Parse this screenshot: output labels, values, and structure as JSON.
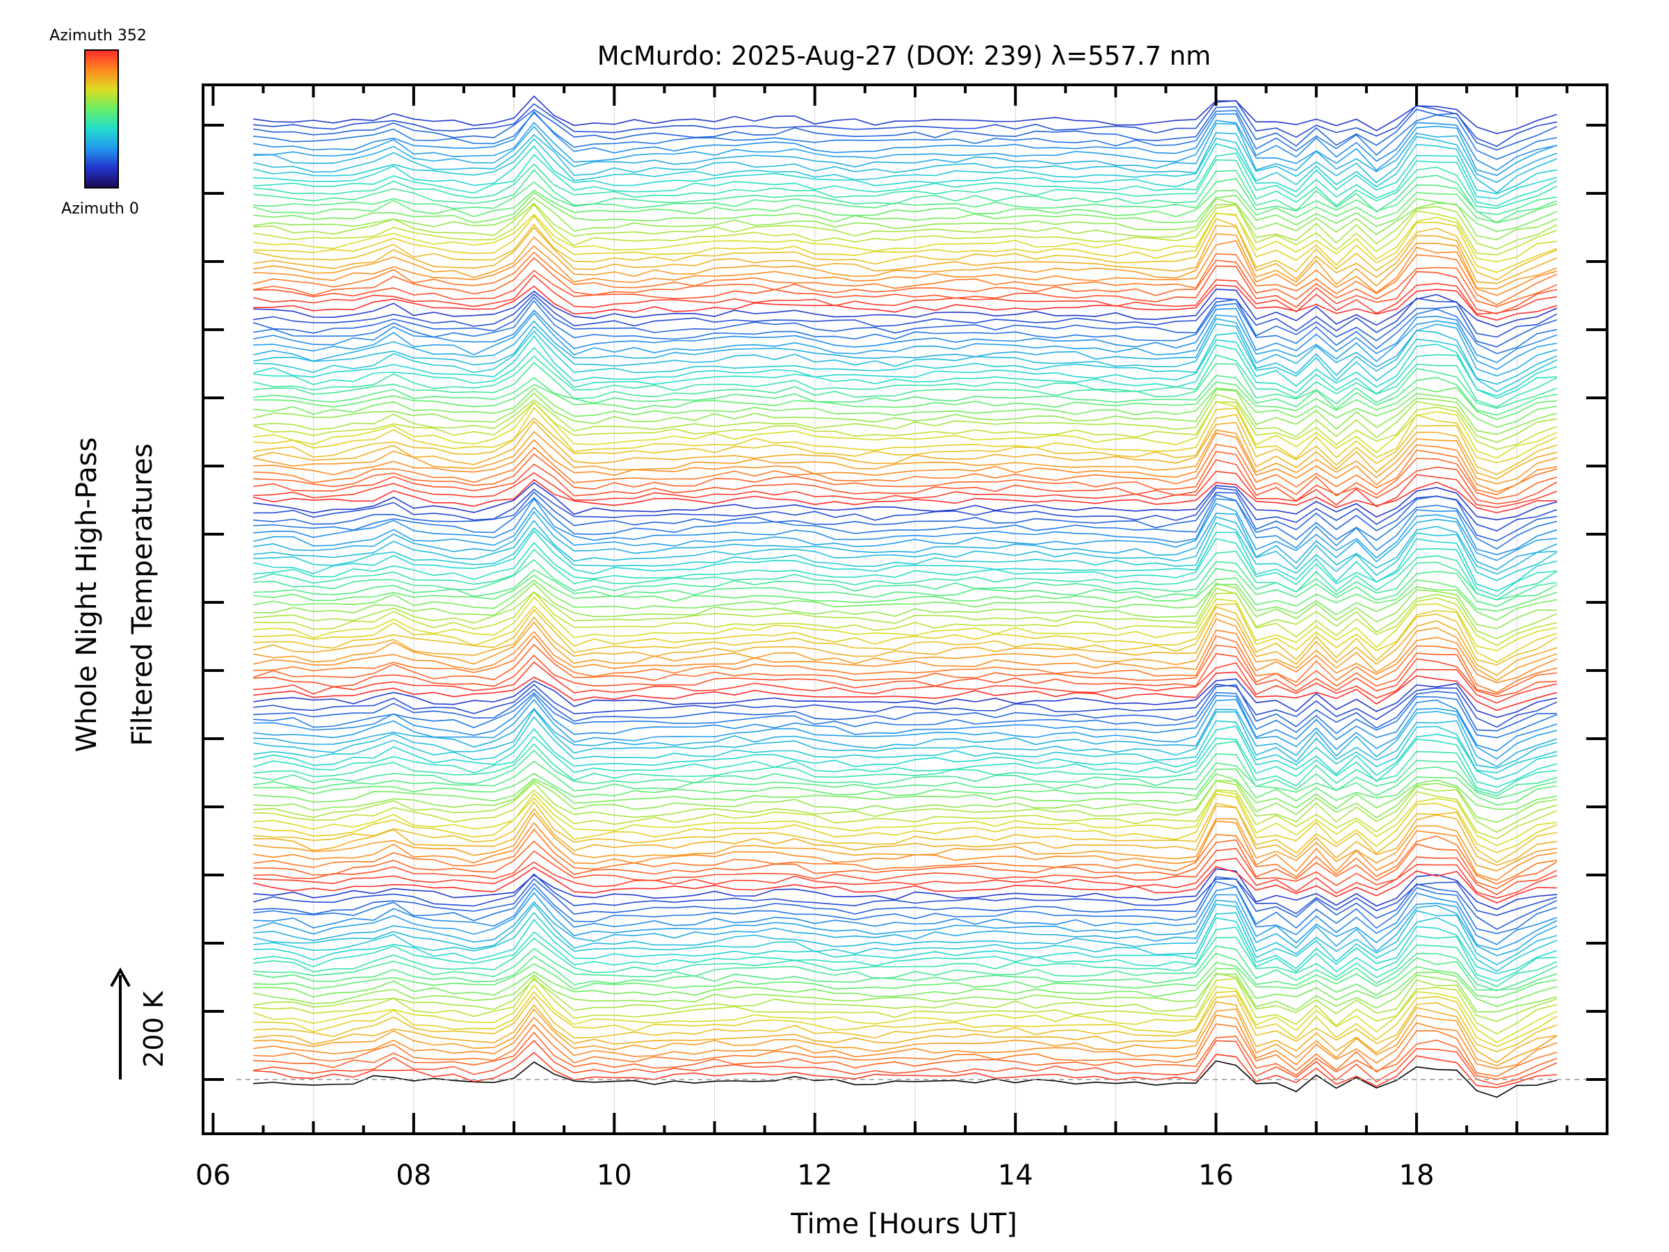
{
  "chart_data": {
    "type": "line",
    "title": "McMurdo: 2025-Aug-27 (DOY: 239) λ=557.7 nm",
    "xlabel": "Time [Hours UT]",
    "ylabel_line1": "Whole Night High-Pass",
    "ylabel_line2": "Filtered Temperatures",
    "scale_label": "200 K",
    "xlim": [
      5.9,
      19.9
    ],
    "x_ticks": [
      6,
      8,
      10,
      12,
      14,
      16,
      18
    ],
    "x_tick_labels": [
      "06",
      "08",
      "10",
      "12",
      "14",
      "16",
      "18"
    ],
    "colorbar": {
      "top_label": "Azimuth 352",
      "bottom_label": "Azimuth 0",
      "colors": [
        "#1a0a50",
        "#2233cc",
        "#2299ee",
        "#22ddcc",
        "#66ee66",
        "#dddd22",
        "#ff8822",
        "#ff2a2a"
      ]
    },
    "grid": "vertical, hourly",
    "series_count": 150,
    "azimuth_range": [
      0,
      352
    ],
    "time_samples_hours": [
      6.4,
      6.6,
      6.8,
      7.0,
      7.2,
      7.4,
      7.6,
      7.8,
      8.0,
      8.2,
      8.4,
      8.6,
      8.8,
      9.0,
      9.2,
      9.4,
      9.6,
      9.8,
      10.0,
      10.2,
      10.4,
      10.6,
      10.8,
      11.0,
      11.2,
      11.4,
      11.6,
      11.8,
      12.0,
      12.2,
      12.4,
      12.6,
      12.8,
      13.0,
      13.2,
      13.4,
      13.6,
      13.8,
      14.0,
      14.2,
      14.4,
      14.6,
      14.8,
      15.0,
      15.2,
      15.4,
      15.6,
      15.8,
      16.0,
      16.2,
      16.4,
      16.6,
      16.8,
      17.0,
      17.2,
      17.4,
      17.6,
      17.8,
      18.0,
      18.2,
      18.4,
      18.6,
      18.8,
      19.0,
      19.2,
      19.4
    ],
    "base_series_K": [
      -2,
      -2,
      -5,
      -14,
      -10,
      -5,
      2,
      16,
      -1,
      -6,
      -9,
      -15,
      -10,
      10,
      61,
      16,
      -17,
      -14,
      -13,
      -13,
      -11,
      -10,
      -8,
      -5,
      -3,
      -2,
      -1,
      0,
      -8,
      -11,
      -13,
      -14,
      -12,
      -9,
      -8,
      -7,
      -6,
      -6,
      -5,
      -7,
      -8,
      -8,
      -10,
      -12,
      -13,
      -15,
      -16,
      -12,
      61,
      58,
      -20,
      -8,
      -30,
      6,
      -30,
      0,
      -33,
      -8,
      45,
      45,
      38,
      -35,
      -50,
      -30,
      -10,
      4
    ]
  }
}
